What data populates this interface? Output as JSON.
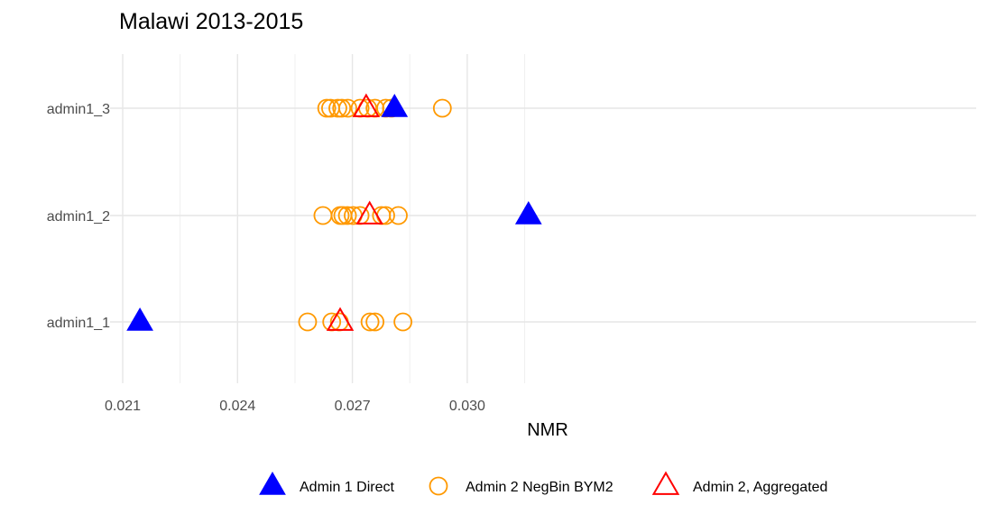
{
  "chart_data": {
    "type": "scatter",
    "title": "Malawi 2013-2015",
    "xlabel": "NMR",
    "ylabel": "",
    "xlim": [
      0.021,
      0.0317
    ],
    "x_ticks": [
      0.021,
      0.024,
      0.027,
      0.03
    ],
    "x_tick_labels": [
      "0.021",
      "0.024",
      "0.027",
      "0.030"
    ],
    "categories": [
      "admin1_1",
      "admin1_2",
      "admin1_3"
    ],
    "grid": true,
    "legend_position": "bottom",
    "series": [
      {
        "name": "Admin 1 Direct",
        "marker": "filled-triangle",
        "color": "#0000FF",
        "points": [
          {
            "y": "admin1_1",
            "x": 0.02145
          },
          {
            "y": "admin1_2",
            "x": 0.0316
          },
          {
            "y": "admin1_3",
            "x": 0.0281
          }
        ]
      },
      {
        "name": "Admin 2 NegBin BYM2",
        "marker": "open-circle",
        "color": "#FF9900",
        "points": [
          {
            "y": "admin1_1",
            "x": 0.02583
          },
          {
            "y": "admin1_1",
            "x": 0.02646
          },
          {
            "y": "admin1_1",
            "x": 0.02666
          },
          {
            "y": "admin1_1",
            "x": 0.02746
          },
          {
            "y": "admin1_1",
            "x": 0.02759
          },
          {
            "y": "admin1_1",
            "x": 0.02832
          },
          {
            "y": "admin1_2",
            "x": 0.02623
          },
          {
            "y": "admin1_2",
            "x": 0.02668
          },
          {
            "y": "admin1_2",
            "x": 0.02675
          },
          {
            "y": "admin1_2",
            "x": 0.02687
          },
          {
            "y": "admin1_2",
            "x": 0.02702
          },
          {
            "y": "admin1_2",
            "x": 0.0272
          },
          {
            "y": "admin1_2",
            "x": 0.02776
          },
          {
            "y": "admin1_2",
            "x": 0.02787
          },
          {
            "y": "admin1_2",
            "x": 0.0282
          },
          {
            "y": "admin1_3",
            "x": 0.02633
          },
          {
            "y": "admin1_3",
            "x": 0.02643
          },
          {
            "y": "admin1_3",
            "x": 0.02662
          },
          {
            "y": "admin1_3",
            "x": 0.02672
          },
          {
            "y": "admin1_3",
            "x": 0.02688
          },
          {
            "y": "admin1_3",
            "x": 0.0272
          },
          {
            "y": "admin1_3",
            "x": 0.0274
          },
          {
            "y": "admin1_3",
            "x": 0.02759
          },
          {
            "y": "admin1_3",
            "x": 0.02787
          },
          {
            "y": "admin1_3",
            "x": 0.02802
          },
          {
            "y": "admin1_3",
            "x": 0.02935
          }
        ]
      },
      {
        "name": "Admin 2, Aggregated",
        "marker": "open-triangle",
        "color": "#FF0000",
        "points": [
          {
            "y": "admin1_1",
            "x": 0.02668
          },
          {
            "y": "admin1_2",
            "x": 0.02745
          },
          {
            "y": "admin1_3",
            "x": 0.02736
          }
        ]
      }
    ]
  }
}
